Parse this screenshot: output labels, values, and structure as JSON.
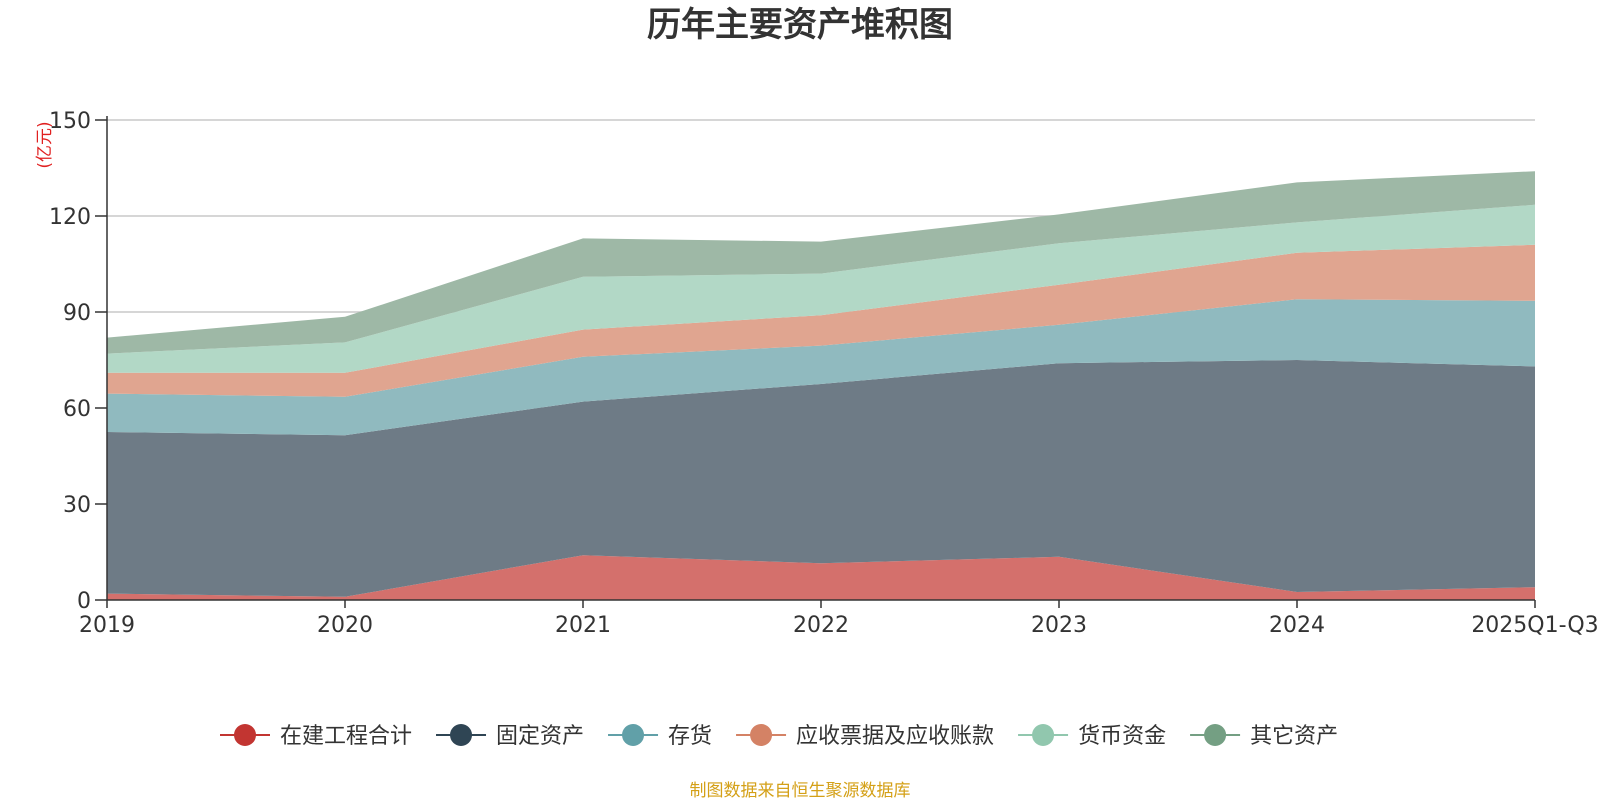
{
  "chart_data": {
    "type": "area",
    "stacked": true,
    "title": "历年主要资产堆积图",
    "unit_label": "(亿元)",
    "x": [
      "2019",
      "2020",
      "2021",
      "2022",
      "2023",
      "2024",
      "2025Q1-Q3"
    ],
    "y_ticks": [
      "0",
      "30",
      "60",
      "90",
      "120",
      "150"
    ],
    "ylim": [
      0,
      150
    ],
    "grid": true,
    "legend_position": "bottom",
    "series": [
      {
        "name": "在建工程合计",
        "color": "#c23531",
        "fill": "#d4706c",
        "values": [
          2,
          1,
          14,
          11.5,
          13.5,
          2.5,
          4
        ]
      },
      {
        "name": "固定资产",
        "color": "#2f4554",
        "fill": "#6e7b86",
        "values": [
          50.5,
          50.5,
          48,
          56,
          60.5,
          72.5,
          69
        ]
      },
      {
        "name": "存货",
        "color": "#61a0a8",
        "fill": "#90babf",
        "values": [
          12,
          12,
          14,
          12,
          12,
          19,
          20.5
        ]
      },
      {
        "name": "应收票据及应收账款",
        "color": "#d48265",
        "fill": "#e0a590",
        "values": [
          6.5,
          7.5,
          8.5,
          9.5,
          12.5,
          14.5,
          17.5
        ]
      },
      {
        "name": "货币资金",
        "color": "#91c7ae",
        "fill": "#b2d8c6",
        "values": [
          6,
          9.5,
          16.5,
          13,
          13,
          9.5,
          12.5
        ]
      },
      {
        "name": "其它资产",
        "color": "#749f83",
        "fill": "#9eb8a6",
        "values": [
          5,
          8,
          12,
          10,
          9,
          12.5,
          10.5
        ]
      }
    ],
    "source": "制图数据来自恒生聚源数据库"
  }
}
